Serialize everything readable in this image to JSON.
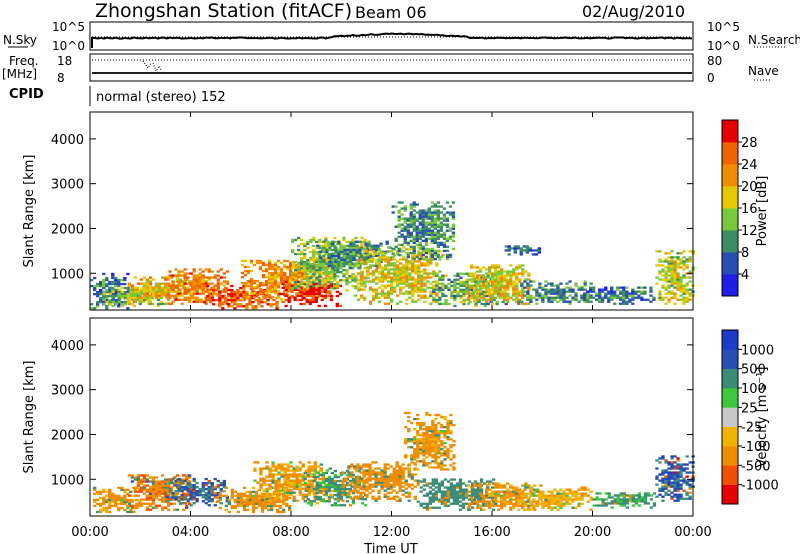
{
  "header": {
    "station_title": "Zhongshan Station (fitACF)",
    "beam": "Beam 06",
    "date": "02/Aug/2010"
  },
  "top_panels": {
    "nsky_label": "N.Sky",
    "nsky_ticks": [
      "10^5",
      "10^0"
    ],
    "nsearch_label": "N.Search",
    "nsearch_ticks": [
      "10^5",
      "10^0"
    ],
    "freq_label_line1": "Freq.",
    "freq_label_line2": "[MHz]",
    "freq_ticks": [
      "18",
      "8"
    ],
    "nave_label": "Nave",
    "nave_ticks": [
      "80",
      "0"
    ],
    "cpid_label": "CPID",
    "cpid_text": "normal (stereo) 152"
  },
  "xaxis": {
    "label": "Time UT",
    "ticks": [
      "00:00",
      "04:00",
      "08:00",
      "12:00",
      "16:00",
      "20:00",
      "00:00"
    ],
    "range_hours": [
      0,
      24
    ]
  },
  "chart_data": [
    {
      "type": "heatmap",
      "panel": "power",
      "xlabel": "Time UT",
      "ylabel": "Slant Range [km]",
      "y_ticks": [
        1000,
        2000,
        3000,
        4000
      ],
      "ylim": [
        180,
        4600
      ],
      "xlim_hours": [
        0,
        24
      ],
      "colorbar_label": "Power [dB]",
      "colorbar_ticks": [
        "4",
        "8",
        "12",
        "16",
        "20",
        "24",
        "28"
      ],
      "colorbar_colors": [
        "#1e1ee6",
        "#2850b4",
        "#3c8c64",
        "#78c83c",
        "#e6c800",
        "#f08c00",
        "#f06400",
        "#e60000"
      ],
      "blobs": [
        {
          "t0": 0.0,
          "t1": 1.5,
          "r0": 200,
          "r1": 1000,
          "v": 8
        },
        {
          "t0": 0.5,
          "t1": 3.0,
          "r0": 250,
          "r1": 700,
          "v": 14
        },
        {
          "t0": 1.5,
          "t1": 4.5,
          "r0": 300,
          "r1": 900,
          "v": 20
        },
        {
          "t0": 3.0,
          "t1": 5.5,
          "r0": 300,
          "r1": 1100,
          "v": 24
        },
        {
          "t0": 4.5,
          "t1": 7.5,
          "r0": 200,
          "r1": 700,
          "v": 26
        },
        {
          "t0": 6.0,
          "t1": 9.5,
          "r0": 400,
          "r1": 1300,
          "v": 22
        },
        {
          "t0": 7.5,
          "t1": 10.0,
          "r0": 250,
          "r1": 800,
          "v": 30
        },
        {
          "t0": 8.0,
          "t1": 11.0,
          "r0": 600,
          "r1": 1800,
          "v": 14
        },
        {
          "t0": 9.0,
          "t1": 12.0,
          "r0": 1100,
          "r1": 1700,
          "v": 10
        },
        {
          "t0": 10.5,
          "t1": 14.0,
          "r0": 300,
          "r1": 1600,
          "v": 18
        },
        {
          "t0": 12.0,
          "t1": 14.5,
          "r0": 1300,
          "r1": 2600,
          "v": 10
        },
        {
          "t0": 13.5,
          "t1": 16.5,
          "r0": 250,
          "r1": 1000,
          "v": 12
        },
        {
          "t0": 15.0,
          "t1": 17.5,
          "r0": 300,
          "r1": 1200,
          "v": 18
        },
        {
          "t0": 16.5,
          "t1": 18.0,
          "r0": 1400,
          "r1": 1600,
          "v": 6
        },
        {
          "t0": 17.0,
          "t1": 20.0,
          "r0": 300,
          "r1": 800,
          "v": 10
        },
        {
          "t0": 19.5,
          "t1": 22.5,
          "r0": 300,
          "r1": 700,
          "v": 8
        },
        {
          "t0": 22.5,
          "t1": 24.0,
          "r0": 300,
          "r1": 1500,
          "v": 16
        }
      ]
    },
    {
      "type": "heatmap",
      "panel": "velocity",
      "xlabel": "Time UT",
      "ylabel": "Slant Range [km]",
      "y_ticks": [
        1000,
        2000,
        3000,
        4000
      ],
      "ylim": [
        180,
        4600
      ],
      "xlim_hours": [
        0,
        24
      ],
      "colorbar_label": "Velocity [m s⁻¹]",
      "colorbar_ticks": [
        "-1000",
        "-500",
        "-100",
        "-25",
        "25",
        "100",
        "500",
        "1000"
      ],
      "colorbar_colors": [
        "#e60000",
        "#f05000",
        "#f08c00",
        "#f0b400",
        "#c8c8c8",
        "#3cc83c",
        "#3c8c78",
        "#2850b4",
        "#1e3cc8"
      ],
      "blobs": [
        {
          "t0": 0.0,
          "t1": 2.0,
          "r0": 250,
          "r1": 800,
          "v": -150
        },
        {
          "t0": 1.5,
          "t1": 4.0,
          "r0": 300,
          "r1": 1100,
          "v": -400
        },
        {
          "t0": 3.0,
          "t1": 5.5,
          "r0": 400,
          "r1": 1000,
          "v": 600
        },
        {
          "t0": 5.0,
          "t1": 8.0,
          "r0": 250,
          "r1": 800,
          "v": -200
        },
        {
          "t0": 6.5,
          "t1": 9.5,
          "r0": 500,
          "r1": 1400,
          "v": -120
        },
        {
          "t0": 8.5,
          "t1": 11.0,
          "r0": 400,
          "r1": 1200,
          "v": 150
        },
        {
          "t0": 10.0,
          "t1": 13.0,
          "r0": 500,
          "r1": 1400,
          "v": -300
        },
        {
          "t0": 12.5,
          "t1": 14.5,
          "r0": 1200,
          "r1": 2500,
          "v": -150
        },
        {
          "t0": 13.0,
          "t1": 16.0,
          "r0": 300,
          "r1": 1000,
          "v": 300
        },
        {
          "t0": 15.0,
          "t1": 18.0,
          "r0": 300,
          "r1": 900,
          "v": -150
        },
        {
          "t0": 17.0,
          "t1": 20.0,
          "r0": 300,
          "r1": 800,
          "v": -80
        },
        {
          "t0": 20.0,
          "t1": 22.5,
          "r0": 350,
          "r1": 700,
          "v": 120
        },
        {
          "t0": 22.5,
          "t1": 24.0,
          "r0": 500,
          "r1": 1500,
          "v": 700
        }
      ]
    }
  ]
}
